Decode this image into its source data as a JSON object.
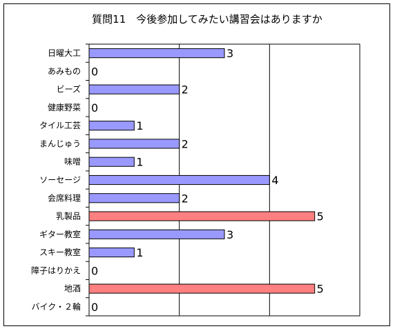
{
  "chart_data": {
    "type": "bar",
    "orientation": "horizontal",
    "title": "質問11　今後参加してみたい講習会はありますか",
    "categories": [
      "日曜大工",
      "あみもの",
      "ビーズ",
      "健康野菜",
      "タイル工芸",
      "まんじゅう",
      "味噌",
      "ソーセージ",
      "会席料理",
      "乳製品",
      "ギター教室",
      "スキー教室",
      "障子はりかえ",
      "地酒",
      "バイク・２輪"
    ],
    "values": [
      3,
      0,
      2,
      0,
      1,
      2,
      1,
      4,
      2,
      5,
      3,
      1,
      0,
      5,
      0
    ],
    "xlim": [
      0,
      6
    ],
    "grid": true,
    "legend": "none",
    "colors": {
      "bar_default": "#9999ff",
      "bar_highlight": "#ff8080",
      "bar_stroke": "#000000",
      "grid": "#000000"
    }
  }
}
